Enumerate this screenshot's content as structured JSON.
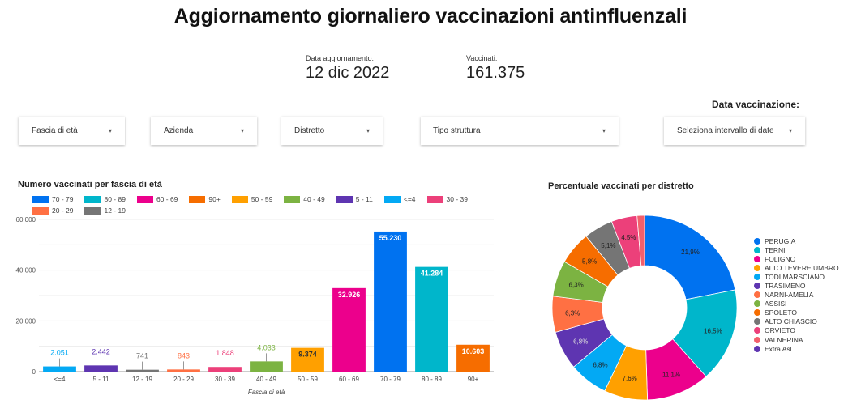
{
  "header": {
    "title": "Aggiornamento giornaliero vaccinazioni antinfluenzali"
  },
  "kpis": {
    "update": {
      "label": "Data aggiornamento:",
      "value": "12 dic 2022"
    },
    "vaccinated": {
      "label": "Vaccinati:",
      "value": "161.375"
    }
  },
  "filters": {
    "age": "Fascia di età",
    "company": "Azienda",
    "district": "Distretto",
    "structure_type": "Tipo struttura",
    "date_label": "Data vaccinazione:",
    "date_range": "Seleziona intervallo di date",
    "arrow": "▾"
  },
  "chart_data": [
    {
      "type": "bar",
      "title": "Numero vaccinati per fascia di età",
      "xlabel": "Fascia di età",
      "ylabel": "",
      "ylim": [
        0,
        60000
      ],
      "yticks": [
        "0",
        "20.000",
        "40.000",
        "60.000"
      ],
      "grid": true,
      "legend_position": "top",
      "categories": [
        "<=4",
        "5 - 11",
        "12 - 19",
        "20 - 29",
        "30 - 39",
        "40 - 49",
        "50 - 59",
        "60 - 69",
        "70 - 79",
        "80 - 89",
        "90+"
      ],
      "values": [
        2051,
        2442,
        741,
        843,
        1848,
        4033,
        9374,
        32926,
        55230,
        41284,
        10603
      ],
      "value_labels": [
        "2.051",
        "2.442",
        "741",
        "843",
        "1.848",
        "4.033",
        "9.374",
        "32.926",
        "55.230",
        "41.284",
        "10.603"
      ],
      "colors": [
        "#03a9f4",
        "#5e35b1",
        "#757575",
        "#ff7043",
        "#ec407a",
        "#7cb342",
        "#ffa000",
        "#ec008c",
        "#0072f0",
        "#00b6cb",
        "#f66d00"
      ],
      "legend": [
        {
          "label": "70 - 79",
          "color": "#0072f0"
        },
        {
          "label": "80 - 89",
          "color": "#00b6cb"
        },
        {
          "label": "60 - 69",
          "color": "#ec008c"
        },
        {
          "label": "90+",
          "color": "#f66d00"
        },
        {
          "label": "50 - 59",
          "color": "#ffa000"
        },
        {
          "label": "40 - 49",
          "color": "#7cb342"
        },
        {
          "label": "5 - 11",
          "color": "#5e35b1"
        },
        {
          "label": "<=4",
          "color": "#03a9f4"
        },
        {
          "label": "30 - 39",
          "color": "#ec407a"
        },
        {
          "label": "20 - 29",
          "color": "#ff7043"
        },
        {
          "label": "12 - 19",
          "color": "#757575"
        }
      ]
    },
    {
      "type": "pie",
      "donut": true,
      "title": "Percentuale vaccinati per distretto",
      "legend_position": "right",
      "categories": [
        "PERUGIA",
        "TERNI",
        "FOLIGNO",
        "ALTO TEVERE UMBRO",
        "TODI MARSCIANO",
        "TRASIMENO",
        "NARNI-AMELIA",
        "ASSISI",
        "SPOLETO",
        "ALTO CHIASCIO",
        "ORVIETO",
        "VALNERINA",
        "Extra Asl"
      ],
      "values": [
        21.9,
        16.5,
        11.1,
        7.6,
        6.8,
        6.8,
        6.3,
        6.3,
        5.8,
        5.1,
        4.5,
        1.3,
        0.0
      ],
      "value_labels": [
        "21,9%",
        "16,5%",
        "11,1%",
        "7,6%",
        "6,8%",
        "6,8%",
        "6,3%",
        "6,3%",
        "5,8%",
        "5,1%",
        "4,5%",
        "",
        ""
      ],
      "colors": [
        "#0072f0",
        "#00b6cb",
        "#ec008c",
        "#ffa000",
        "#03a9f4",
        "#5e35b1",
        "#ff7043",
        "#7cb342",
        "#f66d00",
        "#757575",
        "#ec407a",
        "#f25f6c",
        "#5e35b1"
      ]
    }
  ]
}
